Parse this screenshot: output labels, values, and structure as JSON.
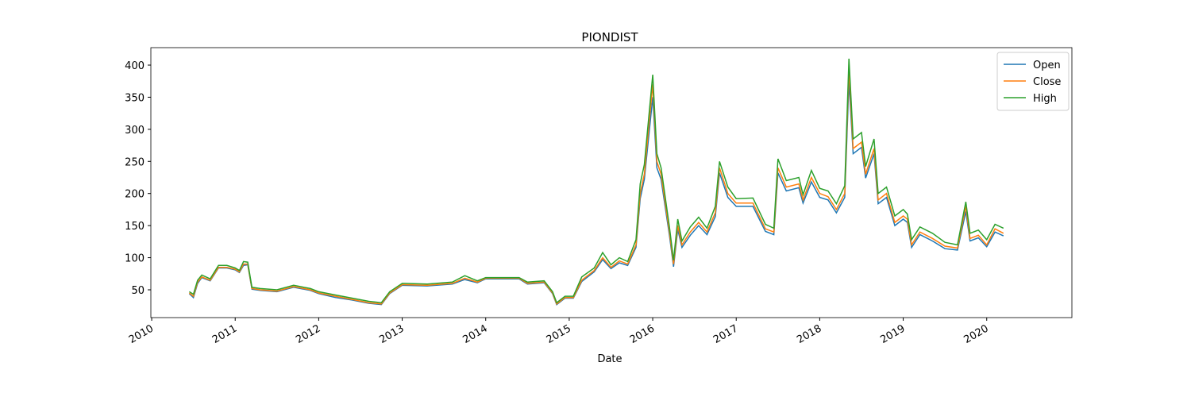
{
  "chart_data": {
    "type": "line",
    "title": "PIONDIST",
    "xlabel": "Date",
    "x": [
      2010.45,
      2010.5,
      2010.55,
      2010.6,
      2010.7,
      2010.8,
      2010.9,
      2011.0,
      2011.05,
      2011.1,
      2011.15,
      2011.2,
      2011.3,
      2011.5,
      2011.7,
      2011.9,
      2012.0,
      2012.2,
      2012.4,
      2012.6,
      2012.75,
      2012.85,
      2013.0,
      2013.3,
      2013.6,
      2013.75,
      2013.9,
      2014.0,
      2014.4,
      2014.5,
      2014.7,
      2014.8,
      2014.85,
      2014.95,
      2015.05,
      2015.15,
      2015.3,
      2015.4,
      2015.5,
      2015.6,
      2015.7,
      2015.8,
      2015.85,
      2015.9,
      2016.0,
      2016.05,
      2016.1,
      2016.2,
      2016.25,
      2016.3,
      2016.35,
      2016.45,
      2016.55,
      2016.65,
      2016.75,
      2016.8,
      2016.9,
      2017.0,
      2017.2,
      2017.35,
      2017.45,
      2017.5,
      2017.6,
      2017.75,
      2017.8,
      2017.9,
      2018.0,
      2018.1,
      2018.2,
      2018.3,
      2018.35,
      2018.4,
      2018.5,
      2018.55,
      2018.65,
      2018.7,
      2018.8,
      2018.9,
      2019.0,
      2019.05,
      2019.1,
      2019.2,
      2019.35,
      2019.5,
      2019.65,
      2019.75,
      2019.8,
      2019.9,
      2020.0,
      2020.1,
      2020.2
    ],
    "series": [
      {
        "name": "Open",
        "color": "#1f77b4",
        "values": [
          44,
          38,
          60,
          69,
          64,
          84,
          84,
          81,
          77,
          88,
          89,
          51,
          49,
          47,
          54,
          49,
          44,
          38,
          34,
          29,
          27,
          44,
          57,
          56,
          59,
          66,
          61,
          67,
          67,
          59,
          61,
          44,
          27,
          37,
          37,
          63,
          78,
          97,
          83,
          92,
          88,
          116,
          192,
          222,
          350,
          240,
          222,
          135,
          86,
          144,
          116,
          135,
          150,
          136,
          164,
          232,
          194,
          180,
          180,
          141,
          136,
          232,
          204,
          209,
          185,
          218,
          194,
          190,
          170,
          194,
          375,
          262,
          272,
          224,
          262,
          184,
          194,
          150,
          160,
          155,
          116,
          136,
          126,
          114,
          112,
          172,
          126,
          131,
          117,
          140,
          134
        ]
      },
      {
        "name": "Close",
        "color": "#ff7f0e",
        "values": [
          45,
          40,
          62,
          70,
          65,
          85,
          85,
          82,
          78,
          90,
          90,
          52,
          50,
          48,
          55,
          50,
          45,
          40,
          35,
          30,
          28,
          45,
          58,
          57,
          60,
          68,
          62,
          68,
          68,
          60,
          62,
          45,
          28,
          38,
          38,
          65,
          80,
          100,
          85,
          95,
          90,
          120,
          200,
          230,
          370,
          250,
          230,
          140,
          90,
          150,
          120,
          140,
          155,
          140,
          170,
          240,
          200,
          185,
          185,
          145,
          140,
          240,
          210,
          215,
          190,
          225,
          200,
          195,
          175,
          200,
          395,
          270,
          280,
          230,
          270,
          190,
          200,
          155,
          165,
          160,
          120,
          140,
          130,
          118,
          115,
          180,
          130,
          135,
          120,
          145,
          138
        ]
      },
      {
        "name": "High",
        "color": "#2ca02c",
        "values": [
          47,
          43,
          65,
          73,
          67,
          88,
          88,
          84,
          80,
          94,
          93,
          54,
          52,
          50,
          57,
          52,
          47,
          42,
          37,
          32,
          30,
          47,
          60,
          59,
          62,
          72,
          64,
          69,
          69,
          62,
          64,
          47,
          30,
          40,
          40,
          70,
          84,
          108,
          89,
          100,
          94,
          128,
          215,
          245,
          385,
          262,
          240,
          148,
          96,
          160,
          126,
          148,
          163,
          146,
          180,
          250,
          210,
          192,
          193,
          152,
          146,
          254,
          220,
          225,
          198,
          236,
          208,
          204,
          184,
          212,
          410,
          285,
          295,
          242,
          285,
          200,
          210,
          165,
          175,
          168,
          128,
          148,
          138,
          124,
          120,
          187,
          138,
          143,
          128,
          152,
          146
        ]
      }
    ],
    "xlim": [
      2009.99,
      2021.02
    ],
    "xticks": [
      2010,
      2011,
      2012,
      2013,
      2014,
      2015,
      2016,
      2017,
      2018,
      2019,
      2020
    ],
    "ylim": [
      6.7,
      427.2
    ],
    "yticks": [
      50,
      100,
      150,
      200,
      250,
      300,
      350,
      400
    ],
    "legend": "upper right"
  }
}
